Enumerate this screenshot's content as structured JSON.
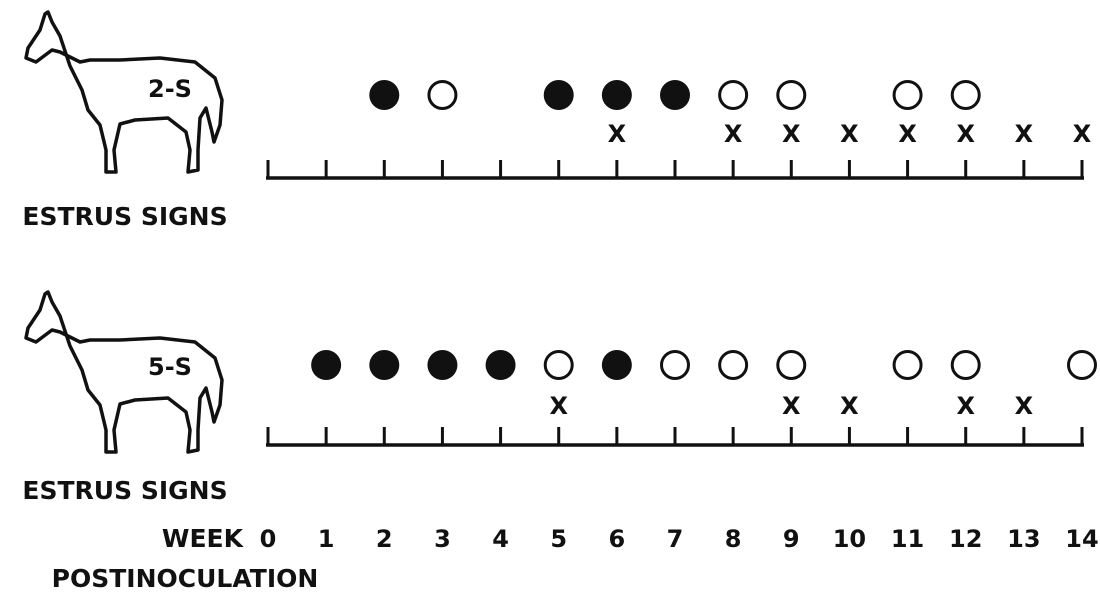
{
  "panels": [
    {
      "horse_label": "2-S",
      "axis_label": "ESTRUS SIGNS",
      "filled_circles": [
        2,
        5,
        6,
        7
      ],
      "open_circles": [
        3,
        8,
        9,
        11,
        12
      ],
      "x_marks": [
        6,
        8,
        9,
        10,
        11,
        12,
        13,
        14
      ],
      "x_symbol": "X"
    },
    {
      "horse_label": "5-S",
      "axis_label": "ESTRUS SIGNS",
      "filled_circles": [
        1,
        2,
        3,
        4,
        6
      ],
      "open_circles": [
        5,
        7,
        8,
        9,
        11,
        12,
        14
      ],
      "x_marks": [
        5,
        9,
        10,
        12,
        13
      ],
      "x_symbol": "X"
    }
  ],
  "week_axis": {
    "label": "WEEK",
    "sublabel": "POSTINOCULATION",
    "ticks": [
      0,
      1,
      2,
      3,
      4,
      5,
      6,
      7,
      8,
      9,
      10,
      11,
      12,
      13,
      14
    ]
  }
}
